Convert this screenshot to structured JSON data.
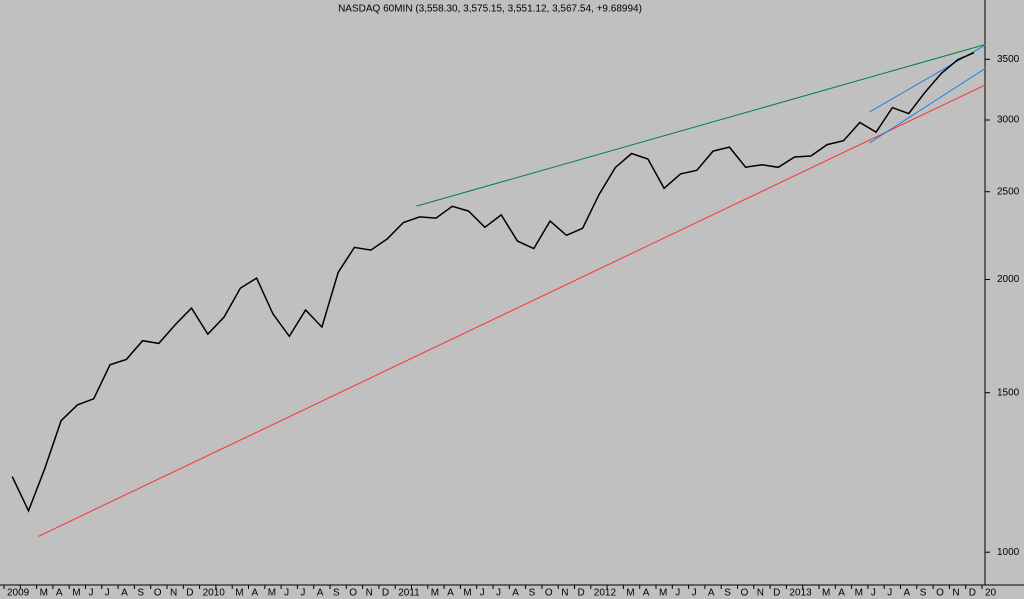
{
  "chart_data": {
    "type": "line",
    "title": "NASDAQ 60MIN (3,558.30, 3,575.15, 3,551.12, 3,567.54, +9.68994)",
    "log_scale": true,
    "grid": false,
    "categories": [
      "2009",
      null,
      "M",
      "A",
      "M",
      "J",
      "J",
      "A",
      "S",
      "O",
      "N",
      "D",
      "2010",
      null,
      "M",
      "A",
      "M",
      "J",
      "J",
      "A",
      "S",
      "O",
      "N",
      "D",
      "2011",
      null,
      "M",
      "A",
      "M",
      "J",
      "J",
      "A",
      "S",
      "O",
      "N",
      "D",
      "2012",
      null,
      "M",
      "A",
      "M",
      "J",
      "J",
      "A",
      "S",
      "O",
      "N",
      "D",
      "2013",
      null,
      "M",
      "A",
      "M",
      "J",
      "J",
      "A",
      "S",
      "O",
      "N",
      "D",
      "20"
    ],
    "series": [
      {
        "name": "NASDAQ",
        "color": "#000000",
        "values": [
          1212,
          1111,
          1237,
          1397,
          1454,
          1477,
          1610,
          1632,
          1712,
          1700,
          1783,
          1860,
          1741,
          1818,
          1957,
          2007,
          1833,
          1731,
          1851,
          1772,
          2037,
          2170,
          2155,
          2217,
          2312,
          2345,
          2338,
          2409,
          2380,
          2284,
          2357,
          2205,
          2164,
          2321,
          2238,
          2278,
          2482,
          2658,
          2755,
          2717,
          2522,
          2616,
          2640,
          2772,
          2800,
          2661,
          2677,
          2660,
          2731,
          2738,
          2818,
          2846,
          2981,
          2909,
          3096,
          3049,
          3219,
          3377,
          3496,
          3560,
          null
        ]
      }
    ],
    "trendlines": [
      {
        "color": "#008040",
        "x": [
          25.3,
          60.2
        ],
        "values": [
          2410,
          3635
        ]
      },
      {
        "color": "#ff3030",
        "x": [
          2.1,
          60.2
        ],
        "values": [
          1041,
          3280
        ]
      },
      {
        "color": "#2080e0",
        "x": [
          53.1,
          60.2
        ],
        "values": [
          3062,
          3630
        ]
      },
      {
        "color": "#2080e0",
        "x": [
          53.1,
          60.2
        ],
        "values": [
          2830,
          3420
        ]
      }
    ],
    "ylim": [
      920,
      4070
    ],
    "yticks": [
      1000,
      1500,
      2000,
      2500,
      3000,
      3500
    ]
  }
}
